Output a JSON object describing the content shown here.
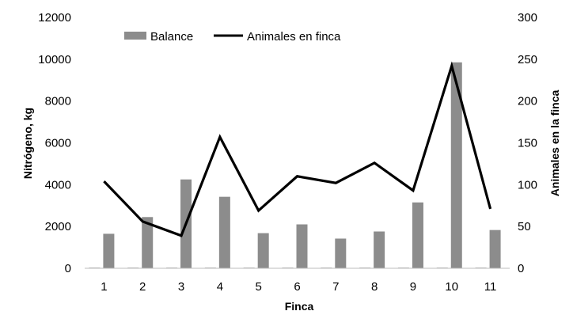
{
  "chart_data": {
    "type": "bar",
    "categories": [
      "1",
      "2",
      "3",
      "4",
      "5",
      "6",
      "7",
      "8",
      "9",
      "10",
      "11"
    ],
    "series": [
      {
        "name": "Balance",
        "type": "bar",
        "axis": "left",
        "color": "#8c8c8c",
        "values": [
          1650,
          2450,
          4250,
          3420,
          1680,
          2100,
          1420,
          1760,
          3150,
          9850,
          1830
        ]
      },
      {
        "name": "Animales en finca",
        "type": "line",
        "axis": "right",
        "color": "#000000",
        "values": [
          104,
          56,
          39,
          157,
          69,
          110,
          102,
          126,
          93,
          242,
          71
        ]
      }
    ],
    "small_bars": {
      "axis": "left",
      "color": "#8c8c8c",
      "values": [
        30,
        30,
        30,
        30,
        30,
        30,
        30,
        30,
        30,
        30,
        30
      ]
    },
    "xlabel": "Finca",
    "ylabel": "Nitrógeno, kg",
    "y2label": "Animales en la finca",
    "ylim": [
      0,
      12000
    ],
    "yticks": [
      "0",
      "2000",
      "4000",
      "6000",
      "8000",
      "10000",
      "12000"
    ],
    "y2lim": [
      0,
      300
    ],
    "y2ticks": [
      "0",
      "50",
      "100",
      "150",
      "200",
      "250",
      "300"
    ],
    "legend_position": "top-left",
    "grid": false
  }
}
